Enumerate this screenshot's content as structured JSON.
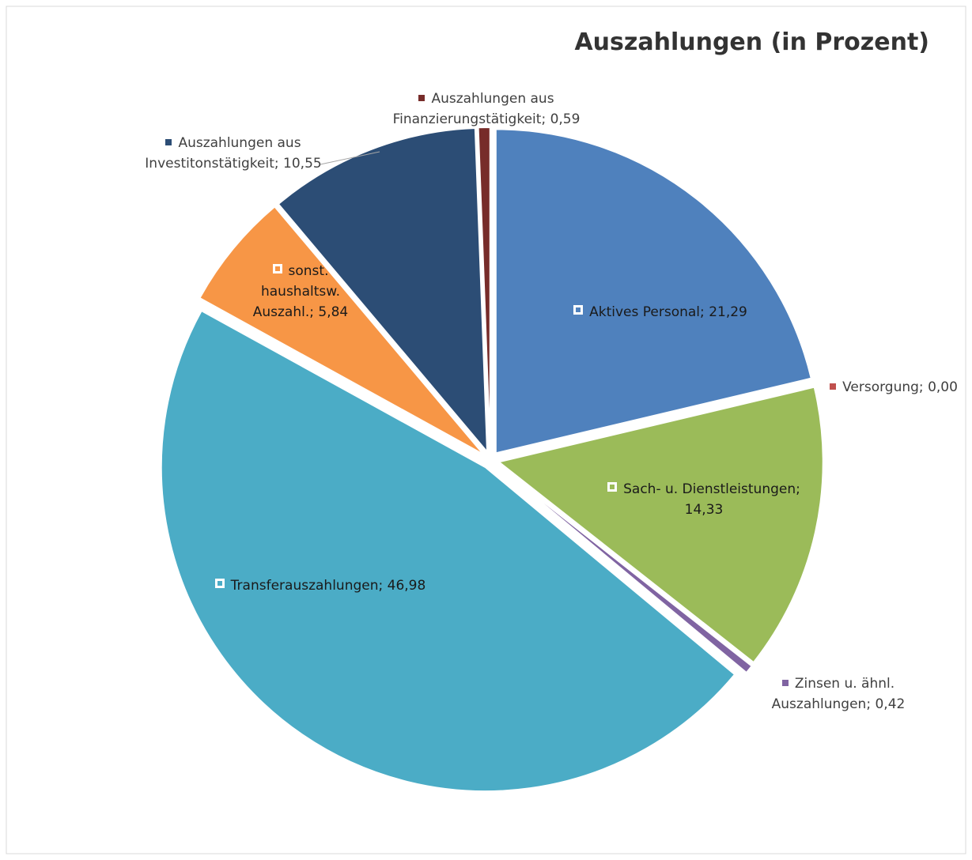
{
  "chart_data": {
    "type": "pie",
    "title": "Auszahlungen (in Prozent)",
    "categories": [
      "Aktives Personal",
      "Versorgung",
      "Sach- u. Dienstleistungen",
      "Zinsen u. ähnl. Auszahlungen",
      "Transferauszahlungen",
      "sonst. haushaltsw. Auszahl.",
      "Auszahlungen aus Investitonstätigkeit",
      "Auszahlungen aus Finanzierungstätigkeit"
    ],
    "values": [
      21.29,
      0.0,
      14.33,
      0.42,
      46.98,
      5.84,
      10.55,
      0.59
    ],
    "value_labels": [
      "21,29",
      "0,00",
      "14,33",
      "0,42",
      "46,98",
      "5,84",
      "10,55",
      "0,59"
    ],
    "label_separator": "; ",
    "colors": [
      "#4f81bd",
      "#c0504d",
      "#9bbb59",
      "#8064a2",
      "#4bacc6",
      "#f79646",
      "#2c4d75",
      "#772c2a"
    ]
  }
}
